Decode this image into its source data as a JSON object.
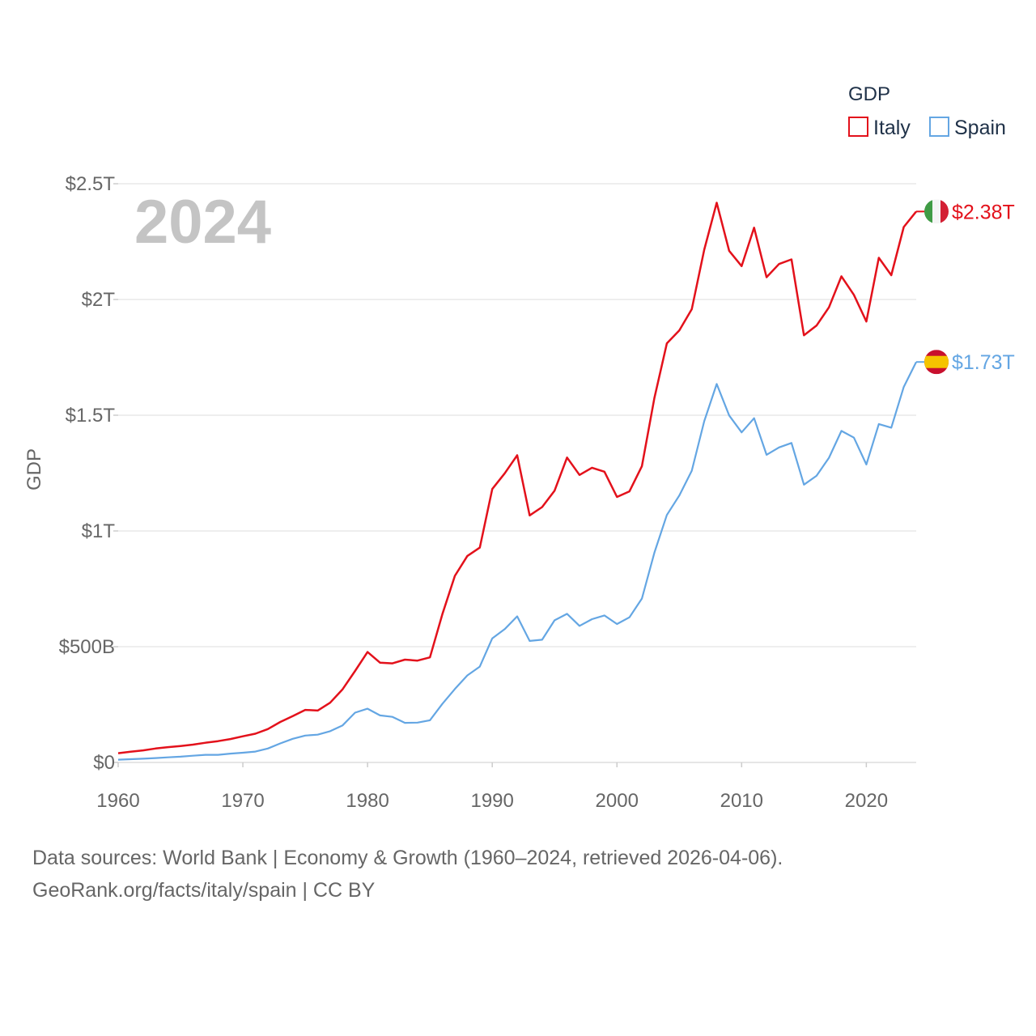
{
  "chart_data": {
    "type": "line",
    "title": "GDP",
    "ylabel": "GDP",
    "xlabel": "",
    "current_year": "2024",
    "xlim": [
      1960,
      2024
    ],
    "ylim": [
      0,
      2.5
    ],
    "y_unit": "trillion USD",
    "x_ticks": [
      "1960",
      "1970",
      "1980",
      "1990",
      "2000",
      "2010",
      "2020"
    ],
    "y_ticks": [
      {
        "value": 0,
        "label": "$0"
      },
      {
        "value": 0.5,
        "label": "$500B"
      },
      {
        "value": 1,
        "label": "$1T"
      },
      {
        "value": 1.5,
        "label": "$1.5T"
      },
      {
        "value": 2,
        "label": "$2T"
      },
      {
        "value": 2.5,
        "label": "$2.5T"
      }
    ],
    "x": [
      1960,
      1961,
      1962,
      1963,
      1964,
      1965,
      1966,
      1967,
      1968,
      1969,
      1970,
      1971,
      1972,
      1973,
      1974,
      1975,
      1976,
      1977,
      1978,
      1979,
      1980,
      1981,
      1982,
      1983,
      1984,
      1985,
      1986,
      1987,
      1988,
      1989,
      1990,
      1991,
      1992,
      1993,
      1994,
      1995,
      1996,
      1997,
      1998,
      1999,
      2000,
      2001,
      2002,
      2003,
      2004,
      2005,
      2006,
      2007,
      2008,
      2009,
      2010,
      2011,
      2012,
      2013,
      2014,
      2015,
      2016,
      2017,
      2018,
      2019,
      2020,
      2021,
      2022,
      2023,
      2024
    ],
    "series": [
      {
        "name": "Italy",
        "color": "#e3111b",
        "flag": "italy-flag",
        "end_label": "$2.38T",
        "values": [
          0.04,
          0.046,
          0.052,
          0.06,
          0.066,
          0.071,
          0.077,
          0.085,
          0.092,
          0.101,
          0.113,
          0.124,
          0.144,
          0.175,
          0.2,
          0.227,
          0.224,
          0.258,
          0.316,
          0.395,
          0.477,
          0.431,
          0.428,
          0.444,
          0.44,
          0.454,
          0.641,
          0.806,
          0.892,
          0.928,
          1.181,
          1.249,
          1.327,
          1.067,
          1.103,
          1.174,
          1.317,
          1.242,
          1.273,
          1.256,
          1.147,
          1.171,
          1.28,
          1.574,
          1.81,
          1.866,
          1.958,
          2.215,
          2.418,
          2.21,
          2.144,
          2.31,
          2.096,
          2.153,
          2.173,
          1.845,
          1.887,
          1.966,
          2.1,
          2.02,
          1.905,
          2.18,
          2.105,
          2.313,
          2.38
        ]
      },
      {
        "name": "Spain",
        "color": "#64a6e3",
        "flag": "spain-flag",
        "end_label": "$1.73T",
        "values": [
          0.012,
          0.014,
          0.016,
          0.019,
          0.022,
          0.025,
          0.029,
          0.033,
          0.033,
          0.038,
          0.042,
          0.047,
          0.06,
          0.082,
          0.102,
          0.116,
          0.12,
          0.135,
          0.16,
          0.215,
          0.232,
          0.203,
          0.197,
          0.171,
          0.172,
          0.182,
          0.253,
          0.317,
          0.376,
          0.414,
          0.536,
          0.576,
          0.631,
          0.525,
          0.53,
          0.614,
          0.642,
          0.59,
          0.619,
          0.635,
          0.598,
          0.627,
          0.708,
          0.906,
          1.069,
          1.153,
          1.26,
          1.474,
          1.635,
          1.499,
          1.426,
          1.487,
          1.329,
          1.361,
          1.38,
          1.2,
          1.238,
          1.316,
          1.432,
          1.403,
          1.287,
          1.462,
          1.446,
          1.622,
          1.73
        ]
      }
    ],
    "legend": {
      "title": "GDP",
      "placement": "top-right"
    }
  },
  "footer": {
    "line1": "Data sources: World Bank | Economy & Growth (1960–2024, retrieved 2026-04-06).",
    "line2": "GeoRank.org/facts/italy/spain | CC BY"
  }
}
